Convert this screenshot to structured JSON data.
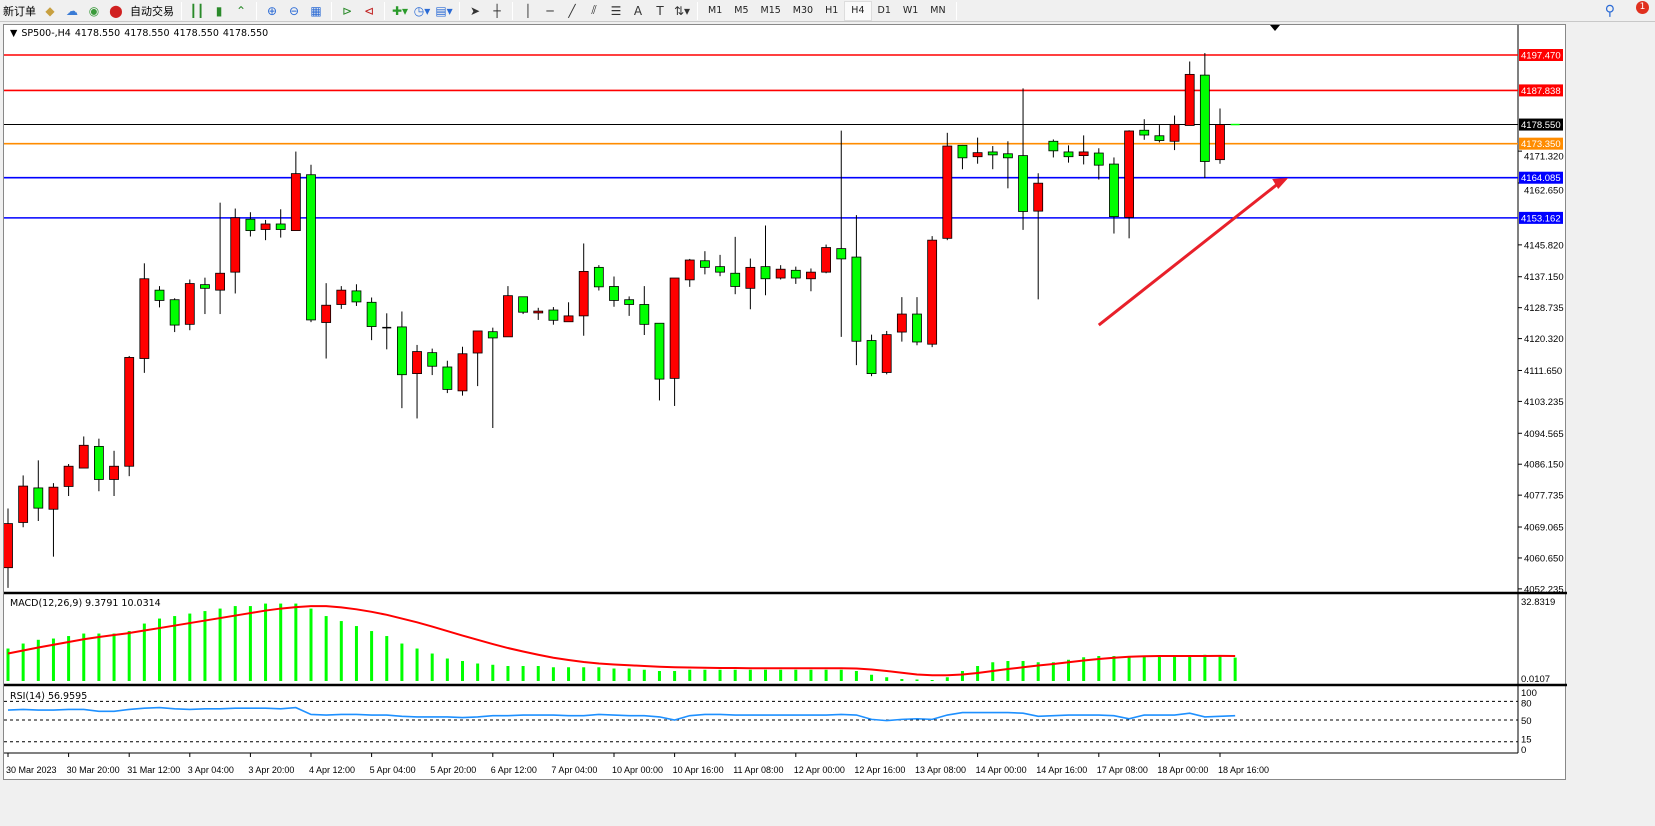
{
  "toolbar": {
    "new_order": "新订单",
    "auto_trading": "自动交易",
    "icons": [
      "history-center-icon",
      "cloud-icon",
      "signal-icon",
      "auto-trading-icon",
      "bar-chart-icon",
      "candlestick-chart-icon",
      "line-chart-icon",
      "zoom-in-icon",
      "zoom-out-icon",
      "tile-windows-icon",
      "auto-scroll-icon",
      "chart-shift-icon",
      "indicators-icon",
      "periods-icon",
      "templates-icon",
      "cursor-icon",
      "crosshair-icon",
      "vertical-line-icon",
      "horizontal-line-icon",
      "trendline-icon",
      "equidistant-channel-icon",
      "fibonacci-icon",
      "text-icon",
      "text-label-icon",
      "arrows-icon"
    ],
    "text_tool": "A",
    "timeframes": [
      "M1",
      "M5",
      "M15",
      "M30",
      "H1",
      "H4",
      "D1",
      "W1",
      "MN"
    ],
    "active_timeframe": "H4",
    "notification_count": "1"
  },
  "chart": {
    "symbol": "SP500-,H4",
    "ohlc": [
      "4178.550",
      "4178.550",
      "4178.550",
      "4178.550"
    ]
  },
  "colors": {
    "up_candle": "#ff0000",
    "down_candle": "#00ff00",
    "macd_hist": "#00ff00",
    "macd_signal": "#ff0000",
    "rsi": "#1e90ff",
    "arrow": "#e8202a"
  },
  "chart_data": [
    {
      "type": "candlestick",
      "ylim": [
        4052.235,
        4203
      ],
      "y_ticks": [
        "4171.320",
        "4162.650",
        "4145.820",
        "4137.150",
        "4128.735",
        "4120.320",
        "4111.650",
        "4103.235",
        "4094.565",
        "4086.150",
        "4077.735",
        "4069.065",
        "4060.650",
        "4052.235"
      ],
      "x_tick_labels": [
        {
          "i": 0,
          "t": "30 Mar 2023"
        },
        {
          "i": 4,
          "t": "30 Mar 20:00"
        },
        {
          "i": 8,
          "t": "31 Mar 12:00"
        },
        {
          "i": 12,
          "t": "3 Apr 04:00"
        },
        {
          "i": 16,
          "t": "3 Apr 20:00"
        },
        {
          "i": 20,
          "t": "4 Apr 12:00"
        },
        {
          "i": 24,
          "t": "5 Apr 04:00"
        },
        {
          "i": 28,
          "t": "5 Apr 20:00"
        },
        {
          "i": 32,
          "t": "6 Apr 12:00"
        },
        {
          "i": 36,
          "t": "7 Apr 04:00"
        },
        {
          "i": 40,
          "t": "10 Apr 00:00"
        },
        {
          "i": 44,
          "t": "10 Apr 16:00"
        },
        {
          "i": 48,
          "t": "11 Apr 08:00"
        },
        {
          "i": 52,
          "t": "12 Apr 00:00"
        },
        {
          "i": 56,
          "t": "12 Apr 16:00"
        },
        {
          "i": 60,
          "t": "13 Apr 08:00"
        },
        {
          "i": 64,
          "t": "14 Apr 00:00"
        },
        {
          "i": 68,
          "t": "14 Apr 16:00"
        },
        {
          "i": 72,
          "t": "17 Apr 08:00"
        },
        {
          "i": 76,
          "t": "18 Apr 00:00"
        },
        {
          "i": 80,
          "t": "18 Apr 16:00"
        }
      ],
      "hlines": [
        {
          "price": 4197.47,
          "label": "4197.470",
          "color": "#ff0000"
        },
        {
          "price": 4187.838,
          "label": "4187.838",
          "color": "#ff0000"
        },
        {
          "price": 4178.55,
          "label": "4178.550",
          "color": "#000000"
        },
        {
          "price": 4173.35,
          "label": "4173.350",
          "color": "#ff8c00"
        },
        {
          "price": 4164.085,
          "label": "4164.085",
          "color": "#0000ff"
        },
        {
          "price": 4153.162,
          "label": "4153.162",
          "color": "#0000ff"
        }
      ],
      "arrow": {
        "from": {
          "i": 72,
          "price": 4124
        },
        "to": {
          "i": 84.5,
          "price": 4164
        }
      },
      "ohlc": [
        [
          4058,
          4074.1,
          4052.5,
          4070.0
        ],
        [
          4070.3,
          4083.1,
          4069.0,
          4080.2
        ],
        [
          4079.7,
          4087.2,
          4070.7,
          4074.2
        ],
        [
          4073.9,
          4081.0,
          4061.0,
          4079.9
        ],
        [
          4080.1,
          4086.2,
          4077.5,
          4085.6
        ],
        [
          4085.1,
          4093.7,
          4085.1,
          4091.3
        ],
        [
          4091.0,
          4093.1,
          4078.8,
          4082.0
        ],
        [
          4082.0,
          4089.8,
          4077.5,
          4085.6
        ],
        [
          4085.6,
          4115.6,
          4082.9,
          4115.2
        ],
        [
          4114.9,
          4140.8,
          4111.0,
          4136.6
        ],
        [
          4133.5,
          4134.6,
          4128.8,
          4130.7
        ],
        [
          4130.9,
          4131.3,
          4122.1,
          4124.0
        ],
        [
          4124.2,
          4136.4,
          4122.6,
          4135.3
        ],
        [
          4135.0,
          4136.9,
          4127.0,
          4134.0
        ],
        [
          4133.5,
          4157.3,
          4127.0,
          4138.1
        ],
        [
          4138.4,
          4155.7,
          4132.6,
          4153.2
        ],
        [
          4152.8,
          4154.7,
          4148.1,
          4149.7
        ],
        [
          4150.0,
          4152.6,
          4147.1,
          4151.5
        ],
        [
          4151.5,
          4155.5,
          4147.8,
          4150.0
        ],
        [
          4149.7,
          4171.2,
          4149.7,
          4165.2
        ],
        [
          4164.9,
          4167.6,
          4124.8,
          4125.4
        ],
        [
          4124.7,
          4135.4,
          4114.9,
          4129.4
        ],
        [
          4129.6,
          4134.6,
          4128.4,
          4133.5
        ],
        [
          4133.3,
          4135.1,
          4129.2,
          4130.3
        ],
        [
          4130.2,
          4131.5,
          4119.9,
          4123.6
        ],
        [
          4123.3,
          4127.2,
          4117.4,
          4123.3
        ],
        [
          4123.5,
          4127.7,
          4101.4,
          4110.5
        ],
        [
          4110.8,
          4118.6,
          4098.6,
          4116.8
        ],
        [
          4116.5,
          4117.6,
          4110.4,
          4112.8
        ],
        [
          4112.6,
          4114.3,
          4105.5,
          4106.5
        ],
        [
          4106.1,
          4118.1,
          4104.8,
          4116.2
        ],
        [
          4116.4,
          4122.4,
          4107.4,
          4122.4
        ],
        [
          4122.2,
          4123.3,
          4096.0,
          4120.5
        ],
        [
          4120.8,
          4134.6,
          4120.8,
          4132.0
        ],
        [
          4131.7,
          4131.7,
          4127.0,
          4127.5
        ],
        [
          4127.3,
          4128.7,
          4125.4,
          4127.8
        ],
        [
          4128.1,
          4128.9,
          4124.1,
          4125.3
        ],
        [
          4124.9,
          4130.2,
          4124.9,
          4126.5
        ],
        [
          4126.5,
          4146.2,
          4121.1,
          4138.6
        ],
        [
          4139.7,
          4140.3,
          4133.4,
          4134.4
        ],
        [
          4134.5,
          4137.2,
          4129.0,
          4130.7
        ],
        [
          4130.9,
          4131.8,
          4126.5,
          4129.6
        ],
        [
          4129.6,
          4134.6,
          4121.3,
          4124.2
        ],
        [
          4124.5,
          4124.5,
          4103.5,
          4109.3
        ],
        [
          4109.5,
          4136.8,
          4102.0,
          4136.8
        ],
        [
          4136.3,
          4142.0,
          4134.4,
          4141.7
        ],
        [
          4141.5,
          4144.1,
          4137.8,
          4139.7
        ],
        [
          4139.9,
          4143.1,
          4137.3,
          4138.4
        ],
        [
          4138.1,
          4148.0,
          4132.4,
          4134.5
        ],
        [
          4134.0,
          4142.1,
          4128.3,
          4139.7
        ],
        [
          4139.9,
          4151.1,
          4132.1,
          4136.6
        ],
        [
          4136.8,
          4140.3,
          4136.4,
          4139.2
        ],
        [
          4138.9,
          4139.9,
          4135.2,
          4136.8
        ],
        [
          4136.6,
          4139.4,
          4133.2,
          4138.4
        ],
        [
          4138.4,
          4145.9,
          4138.1,
          4145.1
        ],
        [
          4144.8,
          4176.9,
          4120.8,
          4142.0
        ],
        [
          4142.5,
          4153.9,
          4113.1,
          4119.6
        ],
        [
          4119.8,
          4121.4,
          4110.1,
          4110.8
        ],
        [
          4111.1,
          4122.4,
          4110.6,
          4121.4
        ],
        [
          4122.1,
          4131.6,
          4119.5,
          4127.0
        ],
        [
          4127.0,
          4131.6,
          4118.5,
          4119.4
        ],
        [
          4118.8,
          4148.2,
          4118.0,
          4147.1
        ],
        [
          4147.6,
          4176.3,
          4147.1,
          4172.7
        ],
        [
          4172.9,
          4173.0,
          4166.4,
          4169.5
        ],
        [
          4169.8,
          4175.0,
          4167.9,
          4170.9
        ],
        [
          4171.1,
          4172.7,
          4166.4,
          4170.3
        ],
        [
          4170.6,
          4174.0,
          4161.2,
          4169.5
        ],
        [
          4170.1,
          4188.4,
          4149.9,
          4154.9
        ],
        [
          4155.0,
          4165.3,
          4131.0,
          4162.6
        ],
        [
          4174.0,
          4174.5,
          4169.6,
          4171.4
        ],
        [
          4171.1,
          4172.9,
          4168.2,
          4169.8
        ],
        [
          4170.1,
          4175.6,
          4167.7,
          4171.1
        ],
        [
          4170.8,
          4172.1,
          4163.6,
          4167.5
        ],
        [
          4167.8,
          4169.6,
          4148.9,
          4153.5
        ],
        [
          4153.3,
          4177.0,
          4147.6,
          4176.8
        ],
        [
          4177.0,
          4180.0,
          4174.4,
          4175.7
        ],
        [
          4175.5,
          4178.4,
          4173.7,
          4174.2
        ],
        [
          4174.0,
          4181.0,
          4171.6,
          4178.6
        ],
        [
          4178.3,
          4195.7,
          4178.3,
          4192.2
        ],
        [
          4192.0,
          4198.0,
          4164.0,
          4168.5
        ],
        [
          4169.0,
          4182.9,
          4167.9,
          4178.55
        ],
        [
          4178.55,
          4178.55,
          4178.55,
          4178.55
        ]
      ]
    },
    {
      "type": "bar+line",
      "title": "MACD(12,26,9) 9.3791 10.0314",
      "ylim": [
        0,
        32.8319
      ],
      "y_ticks": [
        "32.8319",
        "0.0107"
      ],
      "histogram": [
        13,
        15,
        16.5,
        17,
        18,
        19,
        19,
        19,
        20,
        23,
        25,
        26,
        27,
        28,
        29,
        30,
        30,
        31,
        31,
        31,
        29,
        26,
        24,
        22,
        20,
        18,
        15,
        13,
        11,
        9,
        8,
        7,
        6.5,
        6,
        6,
        6,
        5.5,
        5.5,
        5.5,
        5.5,
        5,
        5,
        4.5,
        4,
        4,
        4.5,
        4.5,
        4.5,
        4.5,
        4.5,
        4.5,
        4.5,
        4.5,
        4.5,
        4.5,
        4.5,
        4,
        2.5,
        1.5,
        0.8,
        0.6,
        0.4,
        1.5,
        4,
        6,
        7.5,
        8,
        8,
        7.5,
        7.5,
        8.5,
        9.5,
        10,
        10,
        10,
        10,
        10,
        10,
        10,
        10.5,
        10,
        9.3791
      ],
      "signal": [
        11,
        12.2,
        13.4,
        14.5,
        15.6,
        16.7,
        17.6,
        18.4,
        19.2,
        20.2,
        21.2,
        22.2,
        23.2,
        24.2,
        25.2,
        26.2,
        27.2,
        28.2,
        29,
        29.6,
        30,
        30,
        29.5,
        28.7,
        27.7,
        26.5,
        25,
        23.5,
        21.8,
        20,
        18.2,
        16.5,
        14.8,
        13.2,
        11.8,
        10.5,
        9.3,
        8.4,
        7.6,
        7,
        6.6,
        6.3,
        6,
        5.7,
        5.5,
        5.4,
        5.3,
        5.2,
        5.2,
        5.1,
        5.1,
        5.1,
        5.1,
        5.1,
        5.1,
        5.1,
        5,
        4.6,
        4,
        3.3,
        2.6,
        2.3,
        2.3,
        2.6,
        3.2,
        4,
        4.8,
        5.5,
        6.2,
        6.8,
        7.5,
        8.2,
        8.8,
        9.3,
        9.7,
        9.9,
        10,
        10,
        10,
        10,
        10.05,
        10.0314
      ]
    },
    {
      "type": "line",
      "title": "RSI(14) 56.9595",
      "ylim": [
        0,
        100
      ],
      "levels": [
        80,
        50,
        15
      ],
      "y_ticks": [
        "100",
        "80",
        "50",
        "15",
        "0"
      ],
      "values": [
        66,
        67,
        66,
        66,
        67,
        67,
        64,
        64,
        67,
        69,
        70,
        68,
        67,
        68,
        68,
        69,
        69,
        69,
        68,
        70,
        59,
        58,
        59,
        59,
        58,
        58,
        56,
        55,
        55,
        55,
        54,
        55,
        57,
        57,
        58,
        58,
        58,
        57,
        57,
        59,
        58,
        57,
        57,
        55,
        50,
        57,
        59,
        59,
        58,
        58,
        58,
        58,
        58,
        58,
        58,
        59,
        58,
        51,
        49,
        51,
        52,
        51,
        58,
        62,
        62,
        62,
        62,
        61,
        56,
        57,
        58,
        58,
        58,
        57,
        52,
        58,
        58,
        58,
        61,
        55,
        56,
        56.9595
      ]
    }
  ]
}
